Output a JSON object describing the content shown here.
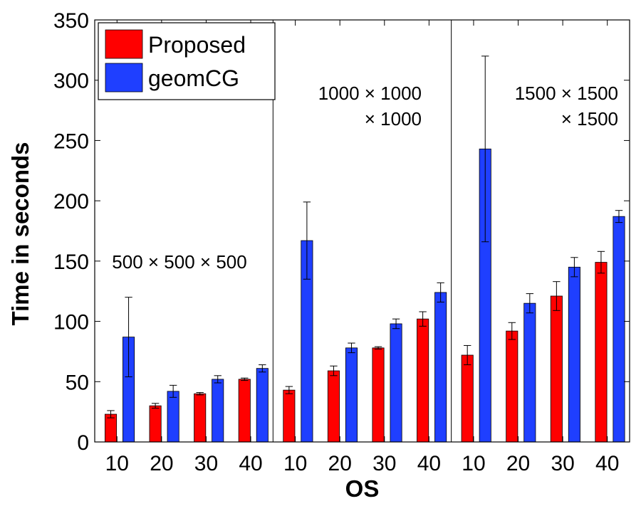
{
  "chart_data": {
    "type": "bar",
    "xlabel": "OS",
    "ylabel": "Time in seconds",
    "ylim": [
      0,
      350
    ],
    "yticks": [
      0,
      50,
      100,
      150,
      200,
      250,
      300,
      350
    ],
    "categories": [
      "10",
      "20",
      "30",
      "40",
      "10",
      "20",
      "30",
      "40",
      "10",
      "20",
      "30",
      "40"
    ],
    "groups": [
      {
        "label_lines": [
          "500 × 500 × 500"
        ],
        "start": 0,
        "count": 4
      },
      {
        "label_lines": [
          "1000 × 1000",
          "× 1000"
        ],
        "start": 4,
        "count": 4
      },
      {
        "label_lines": [
          "1500 × 1500",
          "× 1500"
        ],
        "start": 8,
        "count": 4
      }
    ],
    "series": [
      {
        "name": "Proposed",
        "color": "#ff0000",
        "values": [
          23,
          30,
          40,
          52,
          43,
          59,
          78,
          102,
          72,
          92,
          121,
          149
        ],
        "errors": [
          3,
          2,
          1,
          1,
          3,
          4,
          1,
          6,
          8,
          7,
          12,
          9
        ]
      },
      {
        "name": "geomCG",
        "color": "#1f3fff",
        "values": [
          87,
          42,
          52,
          61,
          167,
          78,
          98,
          124,
          243,
          115,
          145,
          187
        ],
        "errors": [
          33,
          5,
          3,
          3,
          32,
          4,
          4,
          8,
          77,
          8,
          8,
          5
        ]
      }
    ],
    "legend_position": "top-left",
    "grid": false
  }
}
